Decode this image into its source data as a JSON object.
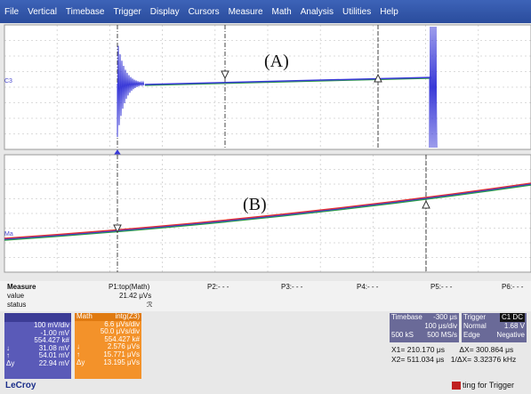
{
  "menu": [
    "File",
    "Vertical",
    "Timebase",
    "Trigger",
    "Display",
    "Cursors",
    "Measure",
    "Math",
    "Analysis",
    "Utilities",
    "Help"
  ],
  "grids": {
    "top": {
      "label": "(A)",
      "channel_tag": "C3"
    },
    "bottom": {
      "label": "(B)",
      "channel_tag": "Ma"
    }
  },
  "measure": {
    "title": "Measure",
    "row_value": "value",
    "row_status": "status",
    "p1_name": "P1:top(Math)",
    "p1_value": "21.42 μVs",
    "p1_status": "ℛ",
    "p2": "P2:- - -",
    "p3": "P3:- - -",
    "p4": "P4:- - -",
    "p5": "P5:- - -",
    "p6": "P6:- - -"
  },
  "ch3_panel": {
    "header_color": "#3c3c96",
    "rows": [
      "100 mV/div",
      "-1.00 mV",
      "554.427 k#"
    ],
    "cursor_rows": [
      {
        "sym": "↓",
        "val": "31.08 mV"
      },
      {
        "sym": "↑",
        "val": "54.01 mV"
      },
      {
        "sym": "Δy",
        "val": "22.94 mV"
      }
    ]
  },
  "math_panel": {
    "name": "Math",
    "func": "intg(Z3)",
    "rows": [
      "6.6 μVs/div",
      "50.0 μVs/div",
      "554.427 k#"
    ],
    "cursor_rows": [
      {
        "sym": "↓",
        "val": "2.576 μVs"
      },
      {
        "sym": "↑",
        "val": "15.771 μVs"
      },
      {
        "sym": "Δy",
        "val": "13.195 μVs"
      }
    ]
  },
  "timebase": {
    "title": "Timebase",
    "delay": "-300 μs",
    "scale": "100 μs/div",
    "samples": "500 kS",
    "rate": "500 MS/s"
  },
  "trigger": {
    "title": "Trigger",
    "source": "C1 DC",
    "mode": "Normal",
    "level": "1.68 V",
    "type": "Edge",
    "slope": "Negative"
  },
  "cursors": {
    "x1_label": "X1=",
    "x1": "210.170 μs",
    "dx_label": "ΔX=",
    "dx": "300.864 μs",
    "x2_label": "X2=",
    "x2": "511.034 μs",
    "inv_label": "1/ΔX=",
    "inv": "3.32376 kHz"
  },
  "logo": "LeCroy",
  "status": "ting for Trigger",
  "colors": {
    "trace_blue": "#3a3ad8",
    "trace_red": "#e03030",
    "trace_green": "#2c9a44",
    "cursor": "#444444"
  }
}
